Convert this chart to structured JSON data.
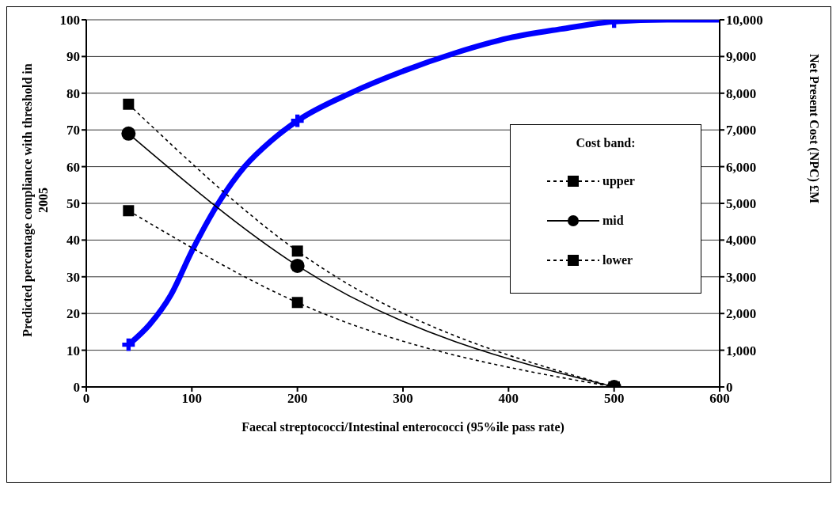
{
  "chart_data": {
    "type": "line",
    "xlabel": "Faecal streptococci/Intestinal enterococci (95%ile pass rate)",
    "ylabel": "Predicted percentage compliance with threshold in 2005",
    "y2label": "Net Present Cost (NPC) £M",
    "legend_title": "Cost band:",
    "legend": "right",
    "grid": "y",
    "xlim": [
      0,
      600
    ],
    "xticks": [
      0,
      100,
      200,
      300,
      400,
      500,
      600
    ],
    "ylim": [
      0,
      100
    ],
    "yticks": [
      0,
      10,
      20,
      30,
      40,
      50,
      60,
      70,
      80,
      90,
      100
    ],
    "y2lim": [
      0,
      10000
    ],
    "y2ticks": [
      0,
      {
        "value": 1000,
        "label": "1,000"
      },
      {
        "value": 2000,
        "label": "2,000"
      },
      {
        "value": 3000,
        "label": "3,000"
      },
      {
        "value": 4000,
        "label": "4,000"
      },
      {
        "value": 5000,
        "label": "5,000"
      },
      {
        "value": 6000,
        "label": "6,000"
      },
      {
        "value": 7000,
        "label": "7,000"
      },
      {
        "value": 8000,
        "label": "8,000"
      },
      {
        "value": 9000,
        "label": "9,000"
      },
      {
        "value": 10000,
        "label": "10,000"
      }
    ],
    "series": [
      {
        "color": "#0000ff",
        "marker": "none",
        "line_style": "solid",
        "x": [
          40,
          60,
          80,
          100,
          125,
          150,
          175,
          200,
          250,
          300,
          350,
          400,
          450,
          500,
          550,
          600
        ],
        "values": [
          11.5,
          17,
          25,
          37,
          50,
          60,
          67,
          72.5,
          80,
          86,
          91,
          95,
          97.5,
          99.5,
          100,
          100
        ]
      },
      {
        "type": "scatter",
        "color": "#0000ff",
        "marker": "cross",
        "x": [
          40,
          200,
          500
        ],
        "values": [
          11.5,
          72.5,
          99.5
        ]
      },
      {
        "name": "upper",
        "axis": "y2",
        "color": "#000000",
        "marker": "square",
        "line_style": "dashed",
        "x": [
          40,
          200,
          500
        ],
        "values": [
          7700,
          3700,
          0
        ]
      },
      {
        "name": "mid",
        "axis": "y2",
        "color": "#000000",
        "marker": "circle",
        "line_style": "solid",
        "x": [
          40,
          200,
          500
        ],
        "values": [
          6900,
          3300,
          0
        ]
      },
      {
        "name": "lower",
        "axis": "y2",
        "color": "#000000",
        "marker": "square",
        "line_style": "dashed",
        "x": [
          40,
          200,
          500
        ],
        "values": [
          4800,
          2300,
          0
        ]
      }
    ]
  }
}
